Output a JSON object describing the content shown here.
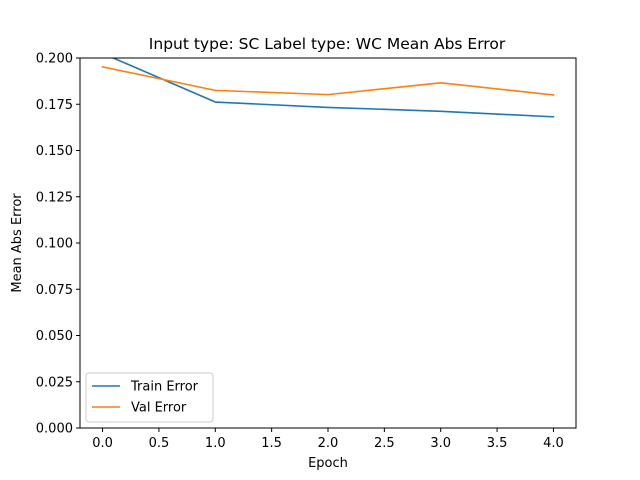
{
  "chart_data": {
    "type": "line",
    "title": "Input type: SC Label type: WC    Mean Abs Error",
    "xlabel": "Epoch",
    "ylabel": "Mean Abs Error",
    "x": [
      0,
      1,
      2,
      3,
      4
    ],
    "xlim": [
      -0.2,
      4.2
    ],
    "ylim": [
      0.0,
      0.2
    ],
    "xticks": [
      0.0,
      0.5,
      1.0,
      1.5,
      2.0,
      2.5,
      3.0,
      3.5,
      4.0
    ],
    "xtick_labels": [
      "0.0",
      "0.5",
      "1.0",
      "1.5",
      "2.0",
      "2.5",
      "3.0",
      "3.5",
      "4.0"
    ],
    "yticks": [
      0.0,
      0.025,
      0.05,
      0.075,
      0.1,
      0.125,
      0.15,
      0.175,
      0.2
    ],
    "ytick_labels": [
      "0.000",
      "0.025",
      "0.050",
      "0.075",
      "0.100",
      "0.125",
      "0.150",
      "0.175",
      "0.200"
    ],
    "grid": false,
    "legend_position": "lower-left",
    "series": [
      {
        "name": "Train Error",
        "color": "#1f77b4",
        "values": [
          0.2025,
          0.1762,
          0.1733,
          0.1712,
          0.1682
        ]
      },
      {
        "name": "Val Error",
        "color": "#ff7f0e",
        "values": [
          0.1952,
          0.1825,
          0.1802,
          0.1866,
          0.18
        ]
      }
    ]
  }
}
